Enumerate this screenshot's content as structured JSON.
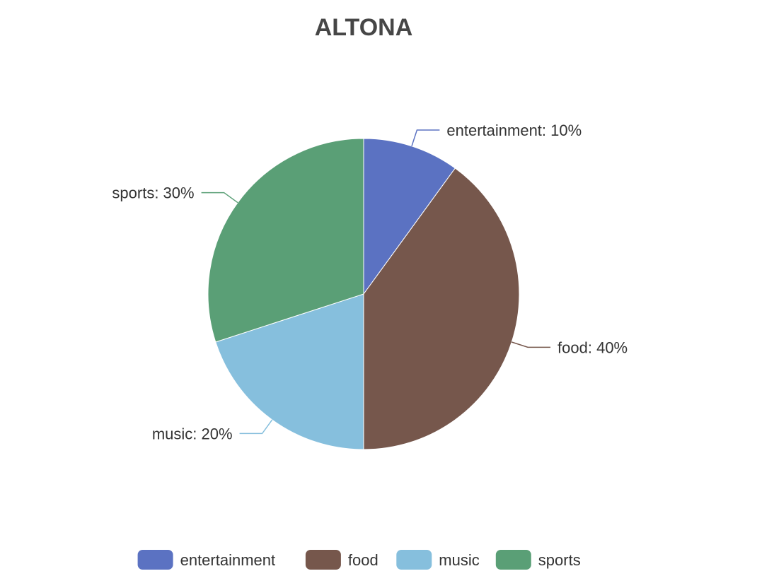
{
  "chart_data": {
    "type": "pie",
    "title": "ALTONA",
    "categories": [
      "entertainment",
      "food",
      "music",
      "sports"
    ],
    "values": [
      10,
      40,
      20,
      30
    ],
    "unit": "%",
    "colors": [
      "#5b72c2",
      "#76574c",
      "#86bfdd",
      "#5a9f76"
    ],
    "legend": "bottom"
  }
}
